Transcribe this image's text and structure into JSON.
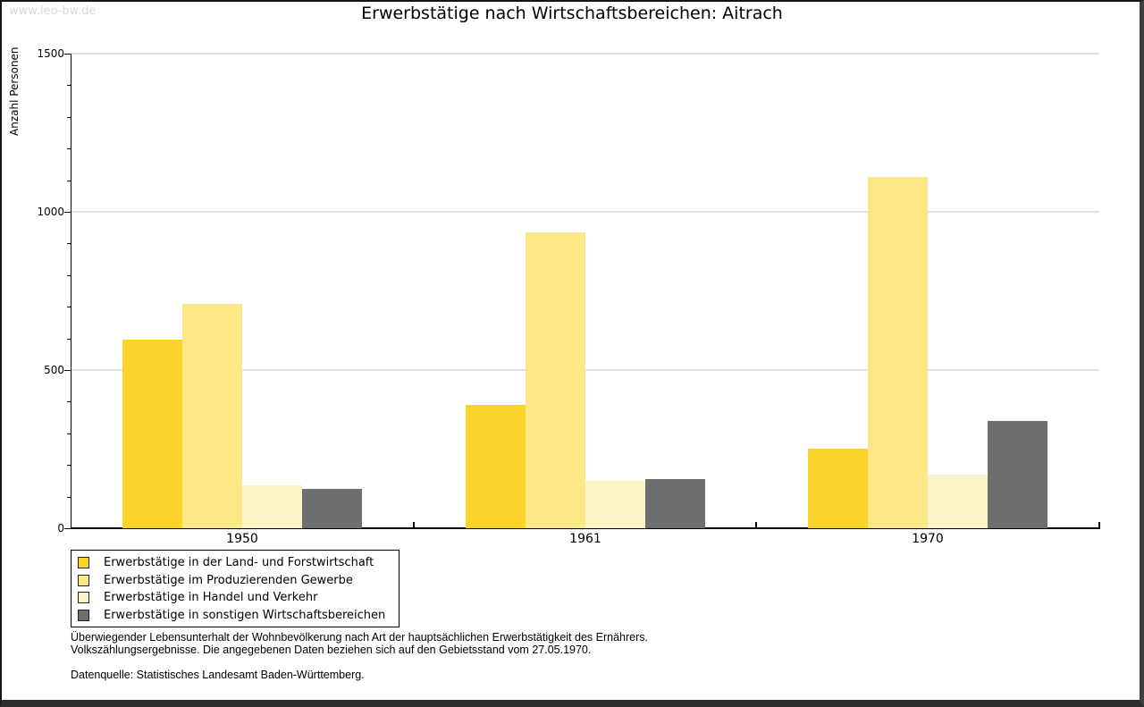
{
  "watermark": "www.leo-bw.de",
  "title": "Erwerbstätige nach Wirtschaftsbereichen: Aitrach",
  "chart_data": {
    "type": "bar",
    "title": "Erwerbstätige nach Wirtschaftsbereichen: Aitrach",
    "xlabel": "",
    "ylabel": "Anzahl Personen",
    "ylim": [
      0,
      1500
    ],
    "ytick_major": [
      0,
      500,
      1000,
      1500
    ],
    "ytick_minor_interval": 100,
    "grid": "horizontal-at-major-ticks",
    "legend_position": "below-plot-left",
    "categories": [
      "1950",
      "1961",
      "1970"
    ],
    "series": [
      {
        "name": "Erwerbstätige in der Land- und Forstwirtschaft",
        "color": "#fbd32c",
        "values": [
          595,
          390,
          250
        ]
      },
      {
        "name": "Erwerbstätige im Produzierenden Gewerbe",
        "color": "#fbe785",
        "values": [
          710,
          935,
          1110
        ]
      },
      {
        "name": "Erwerbstätige in Handel und Verkehr",
        "color": "#fbf3c6",
        "values": [
          135,
          150,
          170
        ]
      },
      {
        "name": "Erwerbstätige in sonstigen Wirtschaftsbereichen",
        "color": "#6e6e6e",
        "values": [
          125,
          155,
          340
        ]
      }
    ]
  },
  "footnote": {
    "line1": "Überwiegender Lebensunterhalt der Wohnbevölkerung nach Art der hauptsächlichen Erwerbstätigkeit des Ernährers.",
    "line2": "Volkszählungsergebnisse. Die angegebenen Daten beziehen sich auf den Gebietsstand vom 27.05.1970.",
    "source": "Datenquelle: Statistisches Landesamt Baden-Württemberg."
  }
}
